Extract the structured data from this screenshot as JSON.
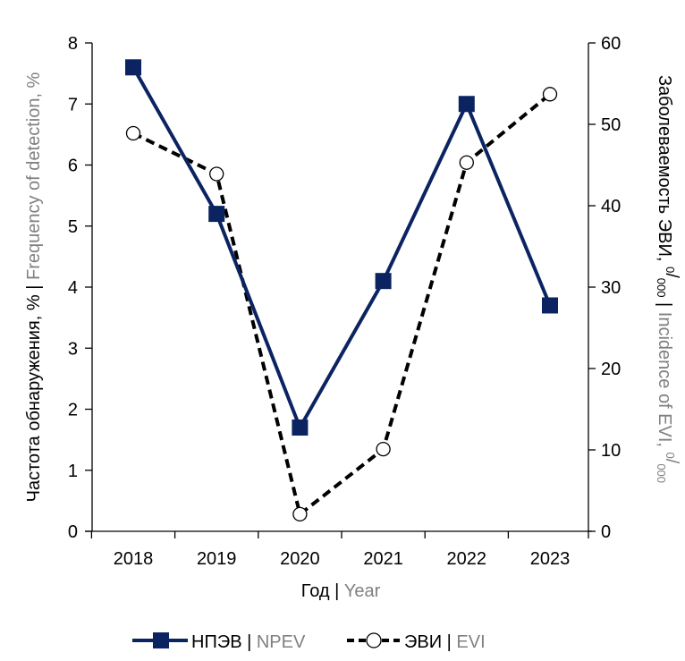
{
  "chart_data": {
    "type": "line",
    "title": "",
    "x": [
      "2018",
      "2019",
      "2020",
      "2021",
      "2022",
      "2023"
    ],
    "xlabel": {
      "primary": "Год",
      "separator": " | ",
      "secondary": "Year"
    },
    "ylabel_left": {
      "primary": "Частота обнаружения, %",
      "separator": " | ",
      "secondary": "Frequency of detection, %"
    },
    "ylabel_right": {
      "primary": "Заболеваемость ЭВИ, ",
      "unit": "‱",
      "unit_sup": "0",
      "unit_sub": "000",
      "separator": " | ",
      "secondary": "Incidence of EVI, "
    },
    "ylim_left": [
      0,
      8
    ],
    "yticks_left": [
      0,
      1,
      2,
      3,
      4,
      5,
      6,
      7,
      8
    ],
    "ylim_right": [
      0,
      60
    ],
    "yticks_right": [
      0,
      10,
      20,
      30,
      40,
      50,
      60
    ],
    "grid": false,
    "legend_position": "bottom-center",
    "series": [
      {
        "name": "НПЭВ | NPEV",
        "name_primary": "НПЭВ",
        "name_secondary": "NPEV",
        "axis": "left",
        "values": [
          7.6,
          5.2,
          1.7,
          4.1,
          7.0,
          3.7
        ],
        "color": "#0b2461",
        "style": "solid",
        "marker": "square-filled"
      },
      {
        "name": "ЭВИ | EVI",
        "name_primary": "ЭВИ",
        "name_secondary": "EVI",
        "axis": "right",
        "values": [
          48.9,
          43.9,
          2.1,
          10.1,
          45.3,
          53.7
        ],
        "color": "#000000",
        "style": "dashed",
        "marker": "circle-open"
      }
    ]
  }
}
